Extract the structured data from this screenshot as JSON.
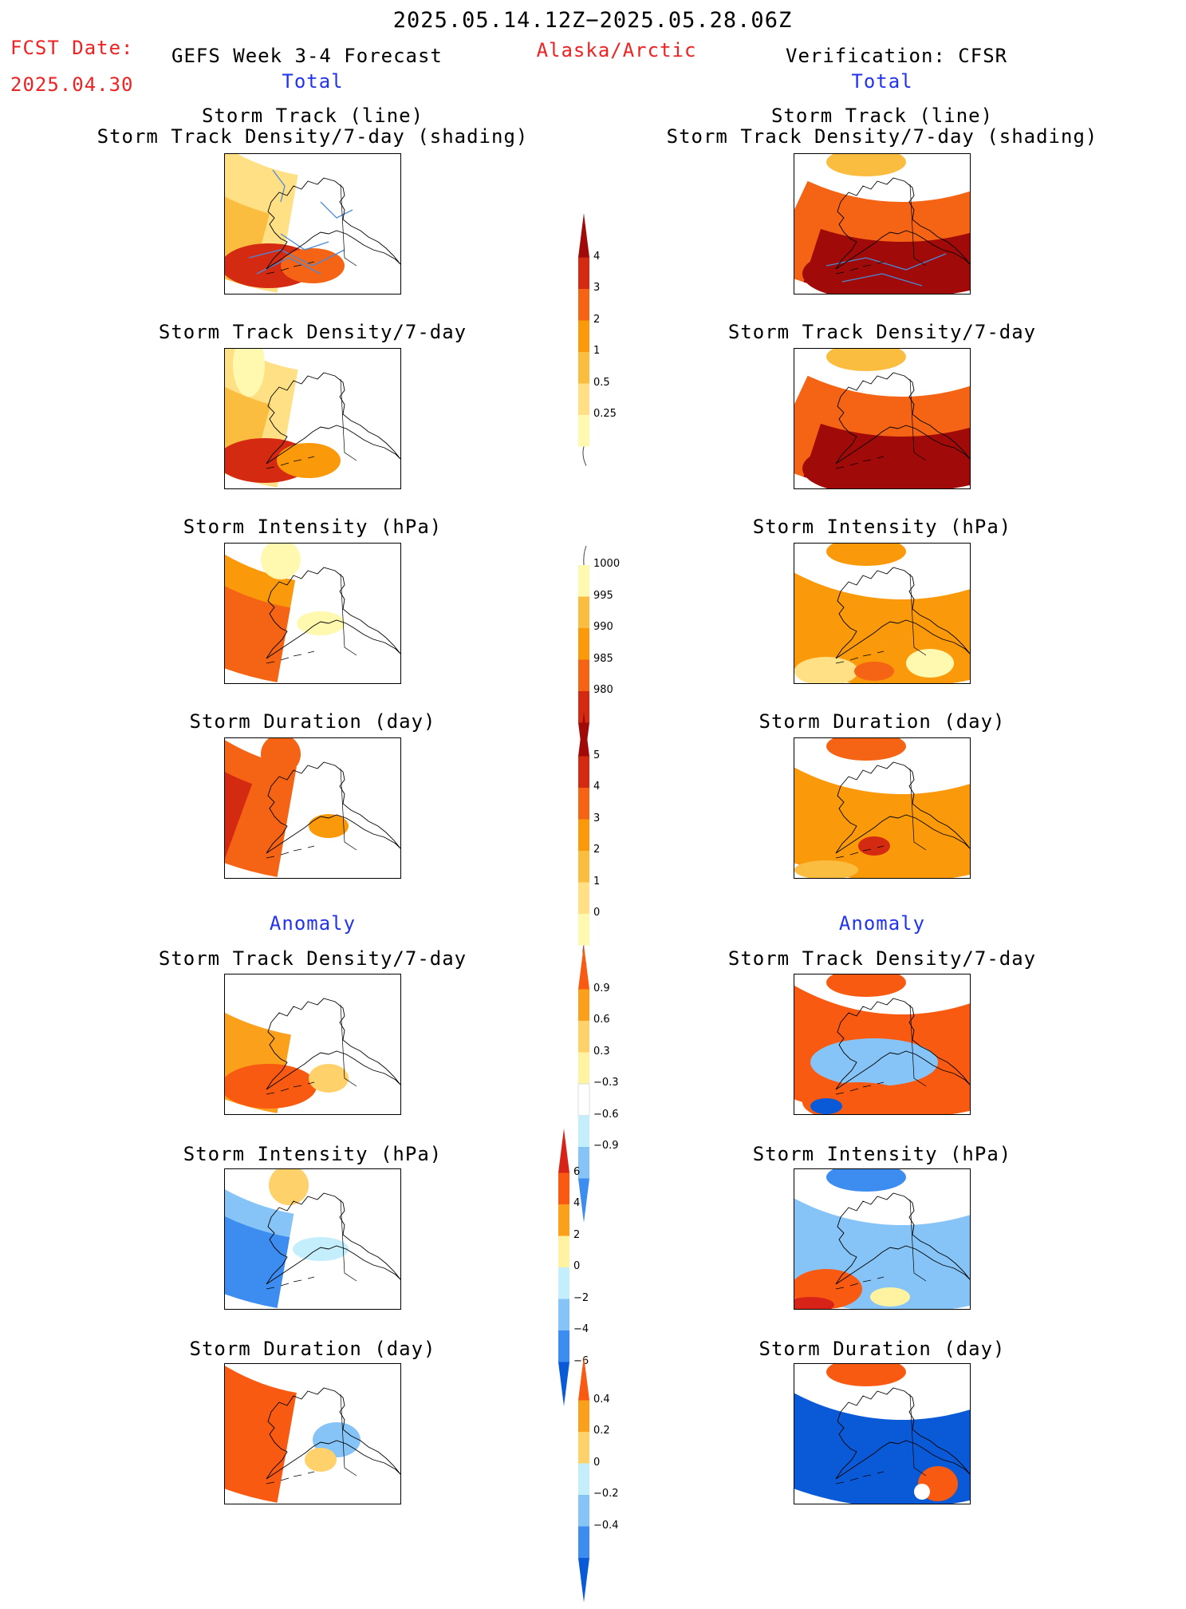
{
  "header": {
    "period": "2025.05.14.12Z−2025.05.28.06Z",
    "fcst_label": "FCST Date:",
    "fcst_date": "2025.04.30",
    "forecast_title": "GEFS Week 3-4 Forecast",
    "region": "Alaska/Arctic",
    "verification": "Verification: CFSR"
  },
  "sections": {
    "total_left": "Total",
    "total_right": "Total",
    "anomaly_left": "Anomaly",
    "anomaly_right": "Anomaly"
  },
  "panel_titles": {
    "track_line": "Storm Track (line)",
    "track_shading": "Storm Track Density/7-day (shading)",
    "density": "Storm Track Density/7-day",
    "intensity": "Storm Intensity (hPa)",
    "duration": "Storm Duration (day)"
  },
  "colorbars": {
    "density": [
      "4",
      "3",
      "2",
      "1",
      "0.5",
      "0.25"
    ],
    "intensity": [
      "1000",
      "995",
      "990",
      "985",
      "980"
    ],
    "duration": [
      "5",
      "4",
      "3",
      "2",
      "1",
      "0"
    ],
    "density_anom": [
      "0.9",
      "0.6",
      "0.3",
      "−0.3",
      "−0.6",
      "−0.9"
    ],
    "intensity_anom": [
      "6",
      "4",
      "2",
      "0",
      "−2",
      "−4",
      "−6"
    ],
    "duration_anom": [
      "0.4",
      "0.2",
      "0",
      "−0.2",
      "−0.4"
    ]
  },
  "palette": {
    "warm": [
      "#fff9b0",
      "#ffe085",
      "#fbbd40",
      "#fa9a0a",
      "#f46414",
      "#d42a12",
      "#a00a08"
    ],
    "anom": [
      "#0a5ad8",
      "#3d8cf0",
      "#86c4f8",
      "#c5eefc",
      "#ffffff",
      "#fff2a0",
      "#fed16a",
      "#fba01a",
      "#f95a12",
      "#d82418"
    ]
  }
}
